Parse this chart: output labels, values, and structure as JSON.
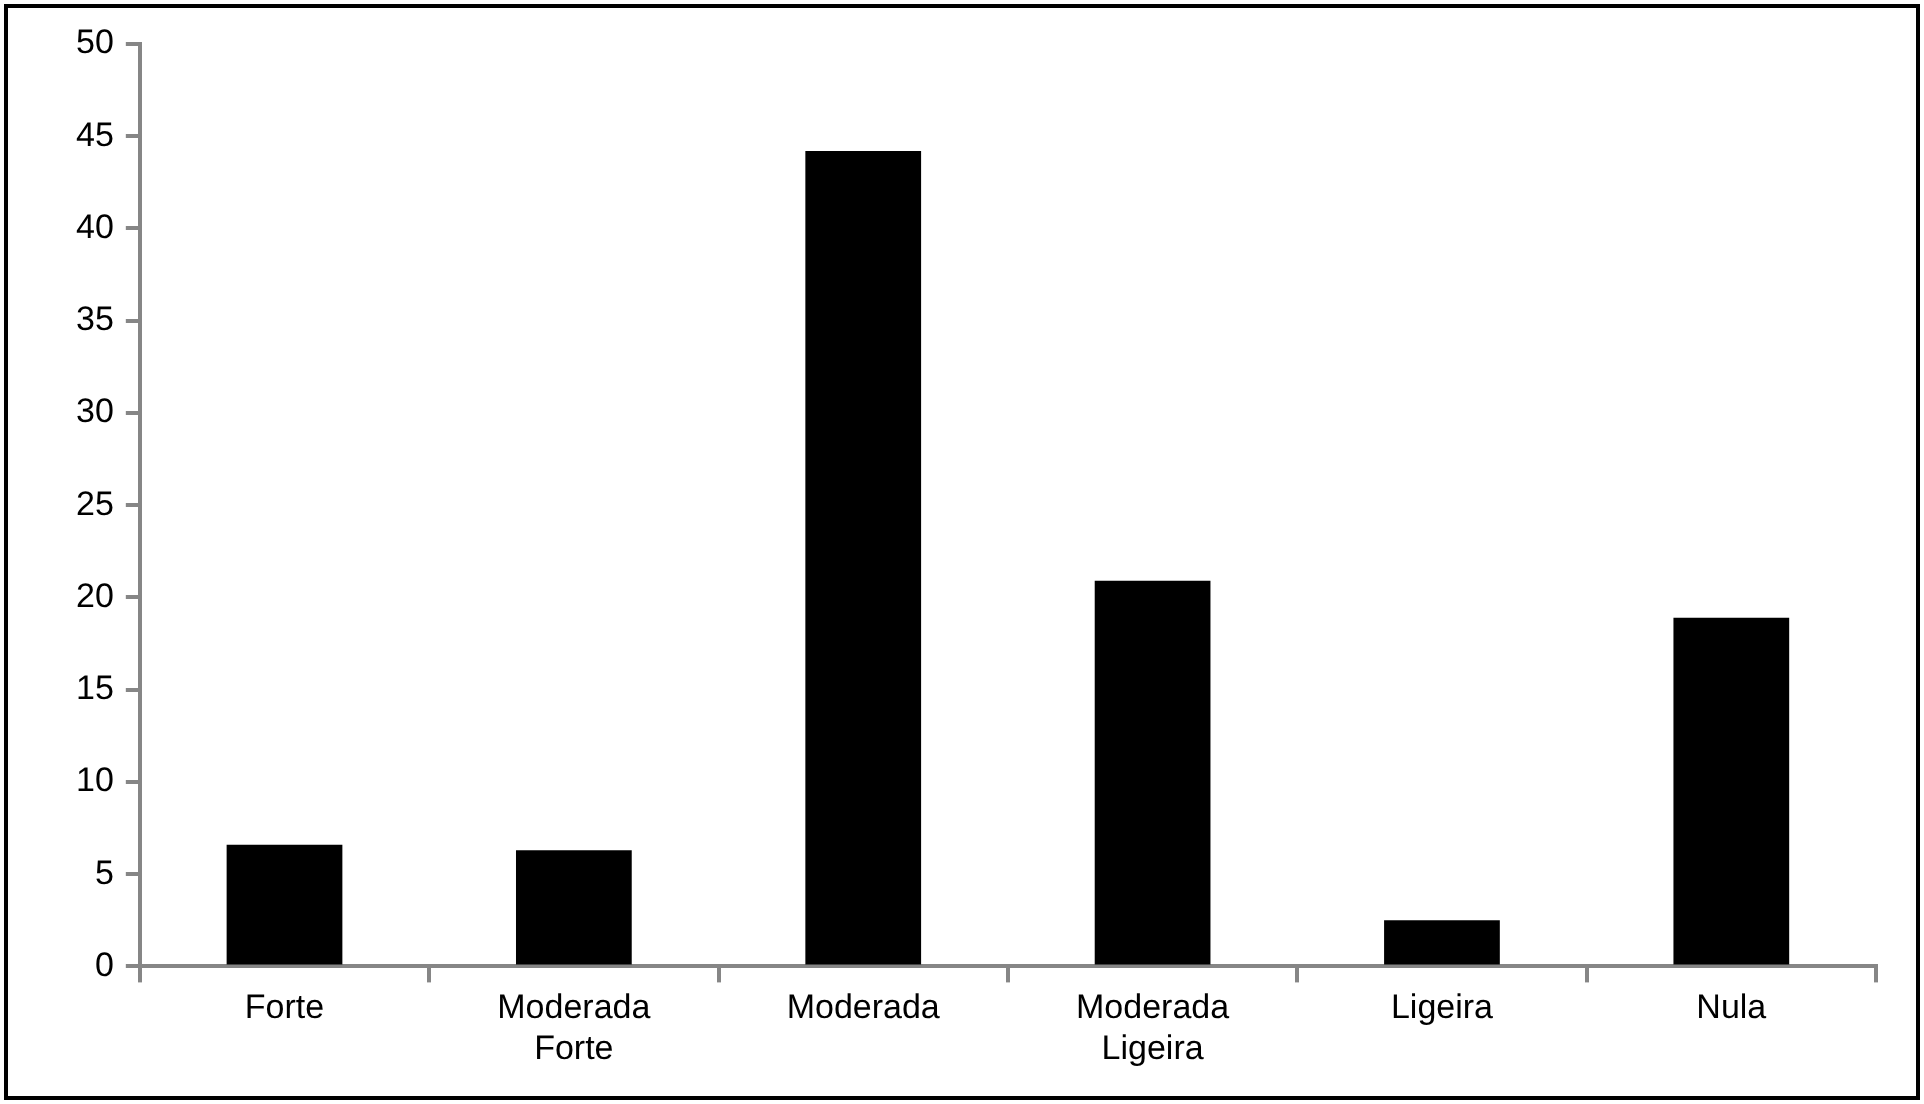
{
  "chart_data": {
    "type": "bar",
    "categories": [
      "Forte",
      "Moderada Forte",
      "Moderada",
      "Moderada Ligeira",
      "Ligeira",
      "Nula"
    ],
    "values": [
      6.6,
      6.3,
      44.2,
      20.9,
      2.5,
      18.9
    ],
    "color": "#000000",
    "ylim": [
      0,
      50
    ],
    "yticks": [
      0,
      5,
      10,
      15,
      20,
      25,
      30,
      35,
      40,
      45,
      50
    ],
    "grid": false,
    "legend": false
  }
}
